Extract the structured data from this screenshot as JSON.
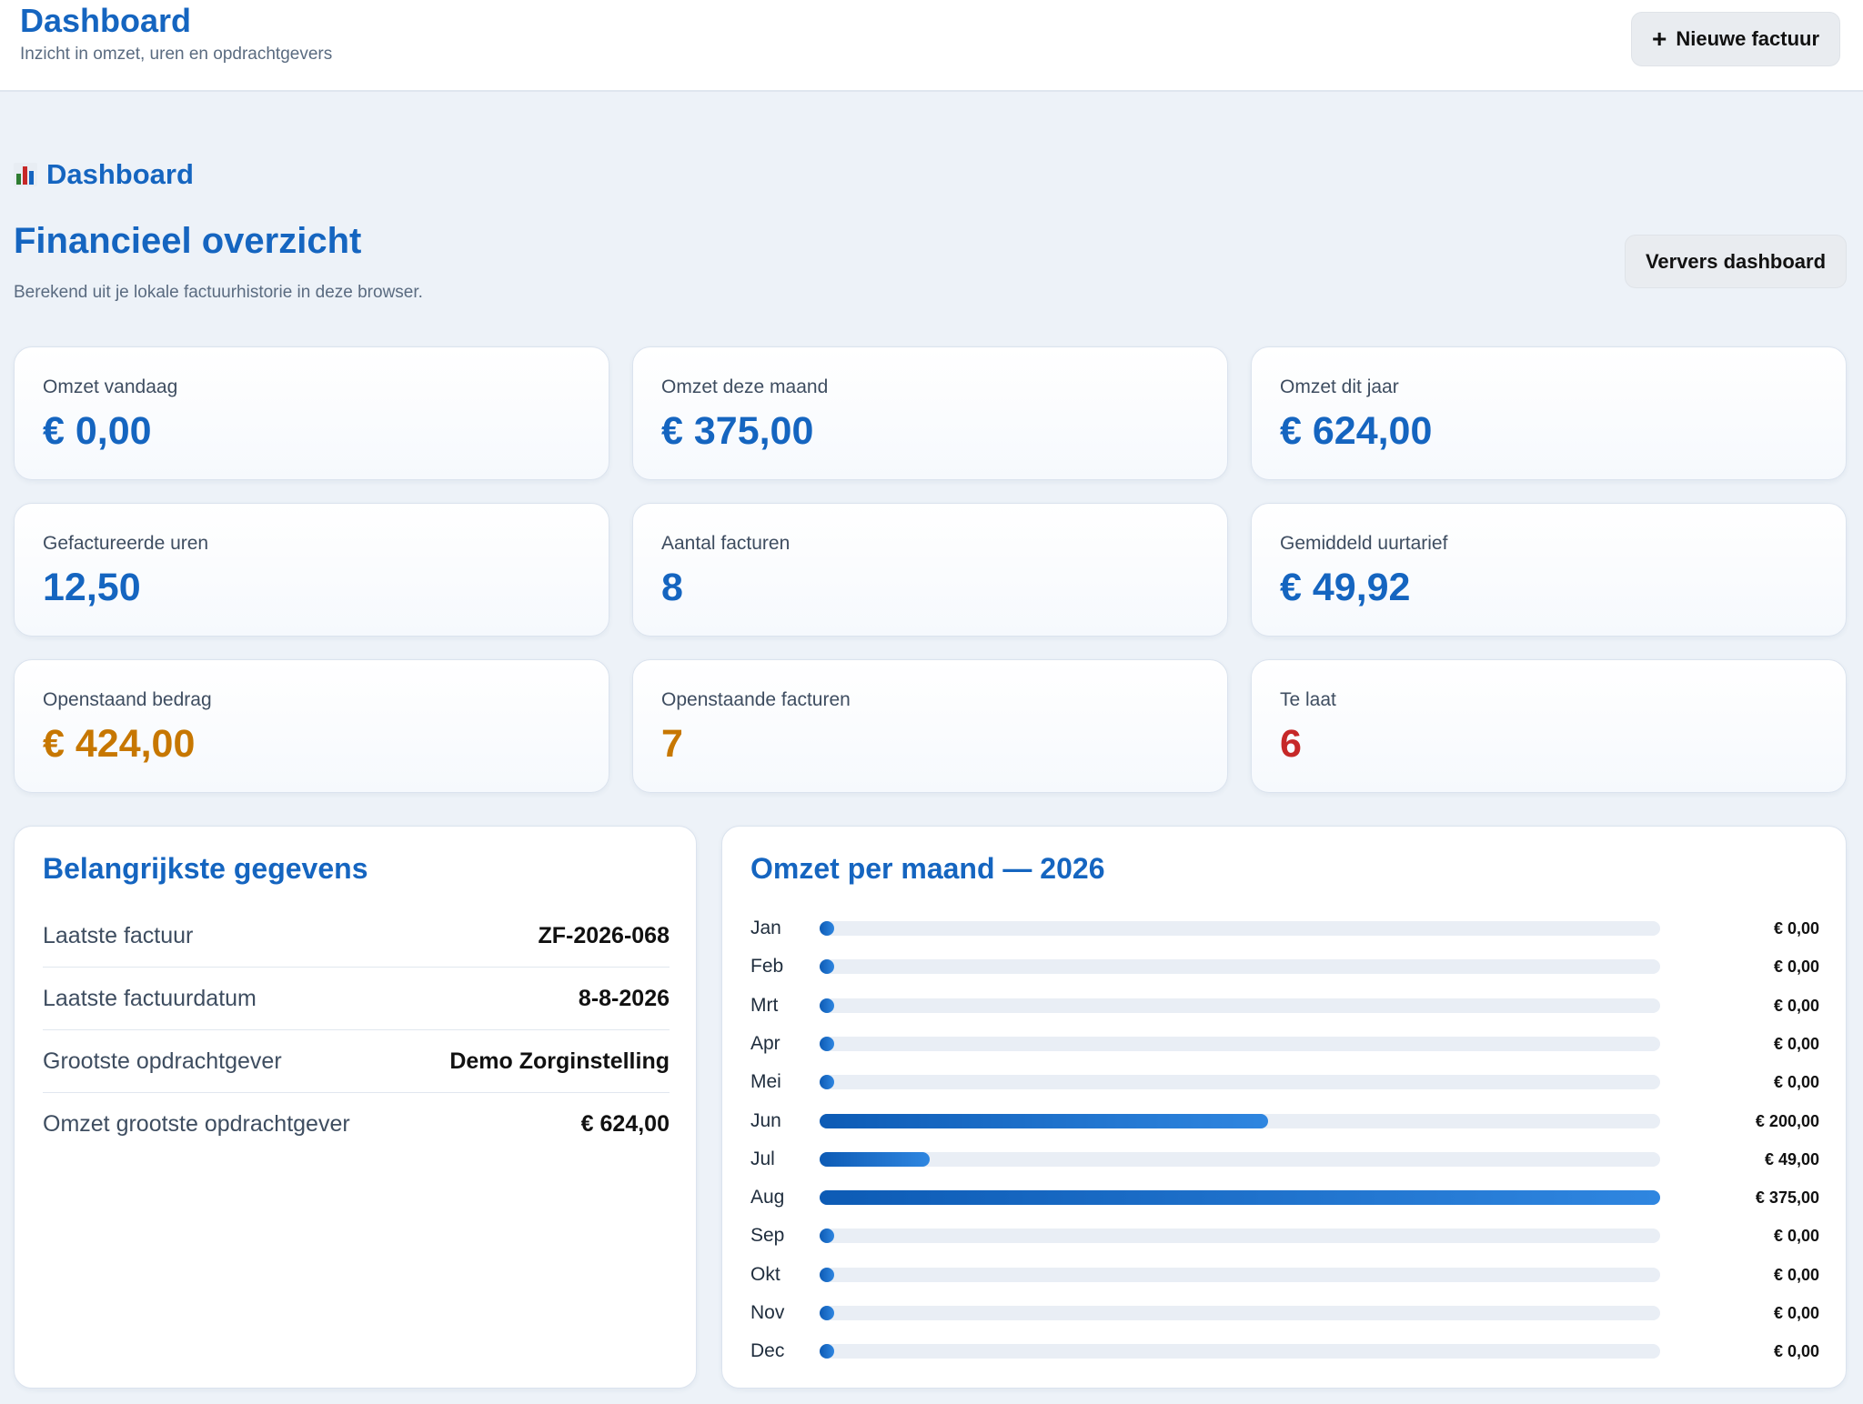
{
  "header": {
    "title": "Dashboard",
    "subtitle": "Inzicht in omzet, uren en opdrachtgevers",
    "new_invoice_label": "Nieuwe factuur"
  },
  "section": {
    "label": "Dashboard",
    "title": "Financieel overzicht",
    "description": "Berekend uit je lokale factuurhistorie in deze browser.",
    "refresh_label": "Ververs dashboard"
  },
  "kpis": [
    {
      "label": "Omzet vandaag",
      "value": "€ 0,00"
    },
    {
      "label": "Omzet deze maand",
      "value": "€ 375,00"
    },
    {
      "label": "Omzet dit jaar",
      "value": "€ 624,00"
    },
    {
      "label": "Gefactureerde uren",
      "value": "12,50"
    },
    {
      "label": "Aantal facturen",
      "value": "8"
    },
    {
      "label": "Gemiddeld uurtarief",
      "value": "€ 49,92"
    },
    {
      "label": "Openstaand bedrag",
      "value": "€ 424,00"
    },
    {
      "label": "Openstaande facturen",
      "value": "7"
    },
    {
      "label": "Te laat",
      "value": "6"
    }
  ],
  "details": {
    "title": "Belangrijkste gegevens",
    "rows": [
      {
        "key": "Laatste factuur",
        "value": "ZF-2026-068"
      },
      {
        "key": "Laatste factuurdatum",
        "value": "8-8-2026"
      },
      {
        "key": "Grootste opdrachtgever",
        "value": "Demo Zorginstelling"
      },
      {
        "key": "Omzet grootste opdrachtgever",
        "value": "€ 624,00"
      }
    ]
  },
  "chart_data": {
    "type": "bar",
    "title": "Omzet per maand — 2026",
    "categories": [
      "Jan",
      "Feb",
      "Mrt",
      "Apr",
      "Mei",
      "Jun",
      "Jul",
      "Aug",
      "Sep",
      "Okt",
      "Nov",
      "Dec"
    ],
    "values": [
      0,
      0,
      0,
      0,
      0,
      200,
      49,
      375,
      0,
      0,
      0,
      0
    ],
    "value_labels": [
      "€ 0,00",
      "€ 0,00",
      "€ 0,00",
      "€ 0,00",
      "€ 0,00",
      "€ 200,00",
      "€ 49,00",
      "€ 375,00",
      "€ 0,00",
      "€ 0,00",
      "€ 0,00",
      "€ 0,00"
    ],
    "orientation": "horizontal",
    "xlim": [
      0,
      375
    ],
    "grid": false,
    "bar_color": "#1565c0"
  },
  "colors": {
    "accent": "#1565c0",
    "warning": "#c77700",
    "danger": "#c62828"
  },
  "icons": {
    "section_icon": "bar-chart-icon",
    "new_invoice_icon": "plus-icon"
  }
}
